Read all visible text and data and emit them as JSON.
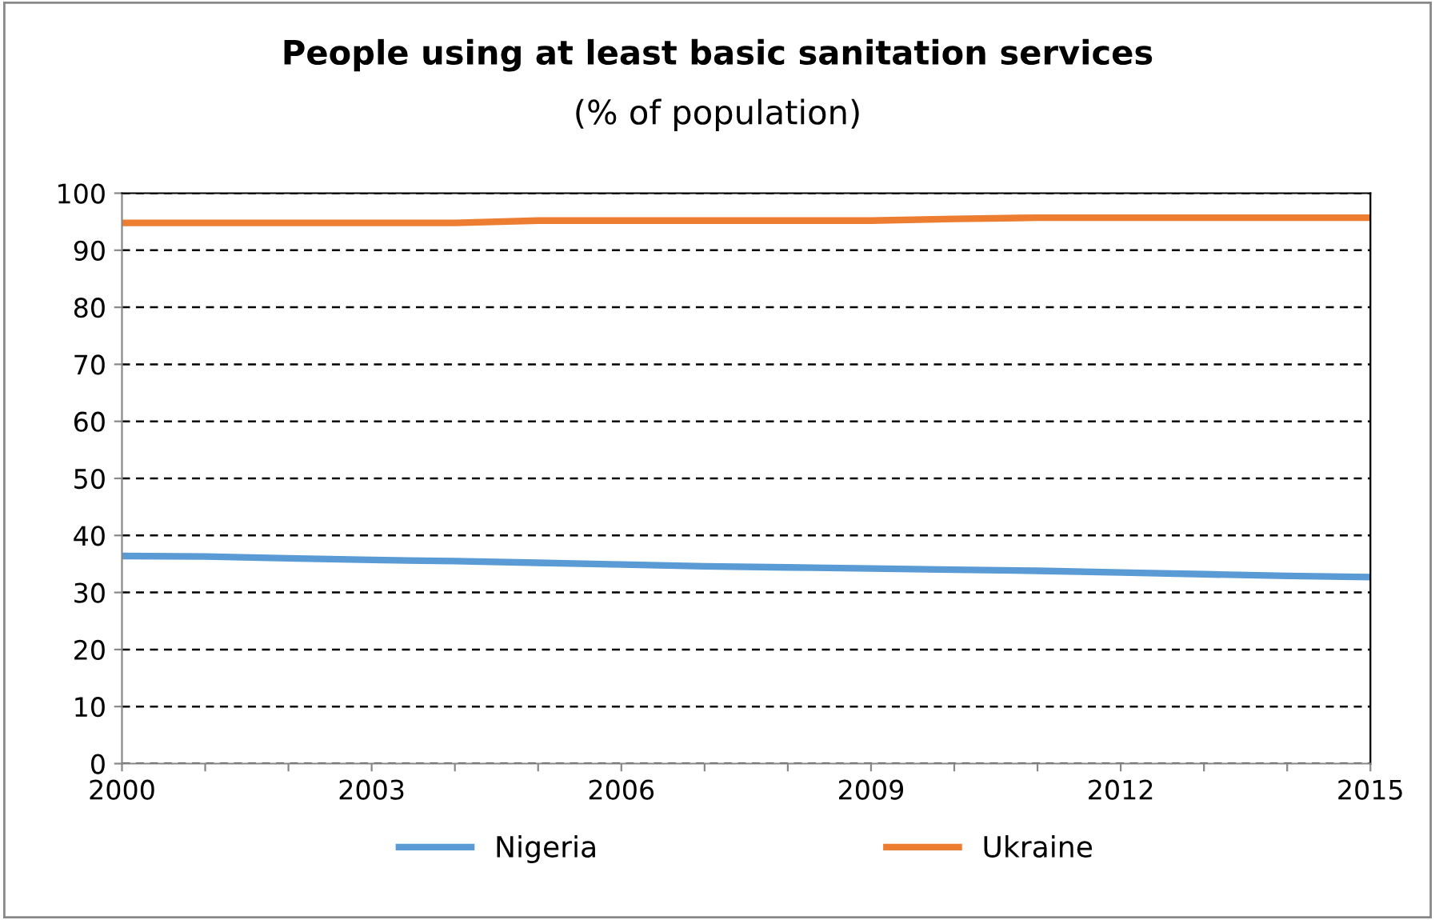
{
  "chart_data": {
    "type": "line",
    "title": "People using at least basic sanitation services",
    "subtitle": "(% of population)",
    "x": [
      2000,
      2001,
      2002,
      2003,
      2004,
      2005,
      2006,
      2007,
      2008,
      2009,
      2010,
      2011,
      2012,
      2013,
      2014,
      2015
    ],
    "series": [
      {
        "name": "Nigeria",
        "color": "#5b9bd5",
        "values": [
          36.4,
          36.3,
          36.0,
          35.7,
          35.5,
          35.2,
          34.9,
          34.6,
          34.4,
          34.2,
          34.0,
          33.8,
          33.5,
          33.2,
          32.9,
          32.7
        ]
      },
      {
        "name": "Ukraine",
        "color": "#ed7d31",
        "values": [
          94.8,
          94.8,
          94.8,
          94.8,
          94.8,
          95.2,
          95.2,
          95.2,
          95.2,
          95.2,
          95.5,
          95.7,
          95.7,
          95.7,
          95.7,
          95.7
        ]
      }
    ],
    "xlim": [
      2000,
      2015
    ],
    "xticks": [
      2000,
      {
        "value": 2001,
        "label": null
      },
      {
        "value": 2002,
        "label": null
      },
      2003,
      {
        "value": 2004,
        "label": null
      },
      {
        "value": 2005,
        "label": null
      },
      2006,
      {
        "value": 2007,
        "label": null
      },
      {
        "value": 2008,
        "label": null
      },
      2009,
      {
        "value": 2010,
        "label": null
      },
      {
        "value": 2011,
        "label": null
      },
      2012,
      {
        "value": 2013,
        "label": null
      },
      {
        "value": 2014,
        "label": null
      },
      2015
    ],
    "ylim": [
      0,
      100
    ],
    "yticks": [
      0,
      10,
      20,
      30,
      40,
      50,
      60,
      70,
      80,
      90,
      100
    ],
    "grid": "y",
    "legend": "bottom",
    "marker": "none",
    "line_style": "solid"
  }
}
